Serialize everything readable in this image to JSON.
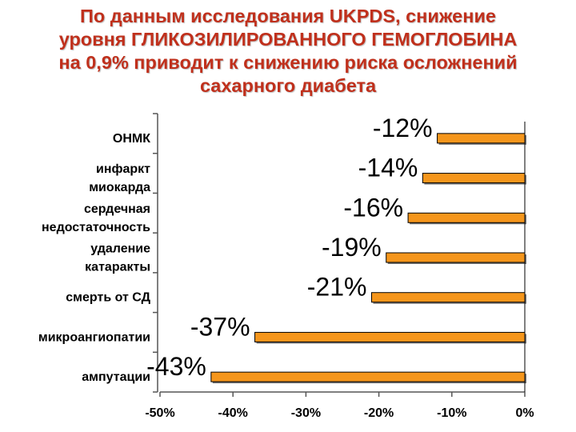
{
  "chart_data": {
    "type": "bar",
    "orientation": "horizontal",
    "title_lines": [
      "По данным исследования UKPDS, снижение",
      "уровня ГЛИКОЗИЛИРОВАННОГО ГЕМОГЛОБИНА",
      "на 0,9% приводит к снижению риска осложнений",
      "сахарного диабета"
    ],
    "categories": [
      [
        "ОНМК"
      ],
      [
        "инфаркт",
        "миокарда"
      ],
      [
        "сердечная",
        "недостаточность"
      ],
      [
        "удаление",
        "катаракты"
      ],
      [
        "смерть от СД"
      ],
      [
        "микроангиопатии"
      ],
      [
        "ампутации"
      ]
    ],
    "values": [
      -12,
      -14,
      -16,
      -19,
      -21,
      -37,
      -43
    ],
    "data_labels": [
      "-12%",
      "-14%",
      "-16%",
      "-19%",
      "-21%",
      "-37%",
      "-43%"
    ],
    "xlim": [
      -50,
      0
    ],
    "x_ticks": [
      -50,
      -40,
      -30,
      -20,
      -10,
      0
    ],
    "x_tick_labels": [
      "-50%",
      "-40%",
      "-30%",
      "-20%",
      "-10%",
      "0%"
    ],
    "bar_color": "#f5961c",
    "title_color": "#c0301c",
    "grid": false
  }
}
